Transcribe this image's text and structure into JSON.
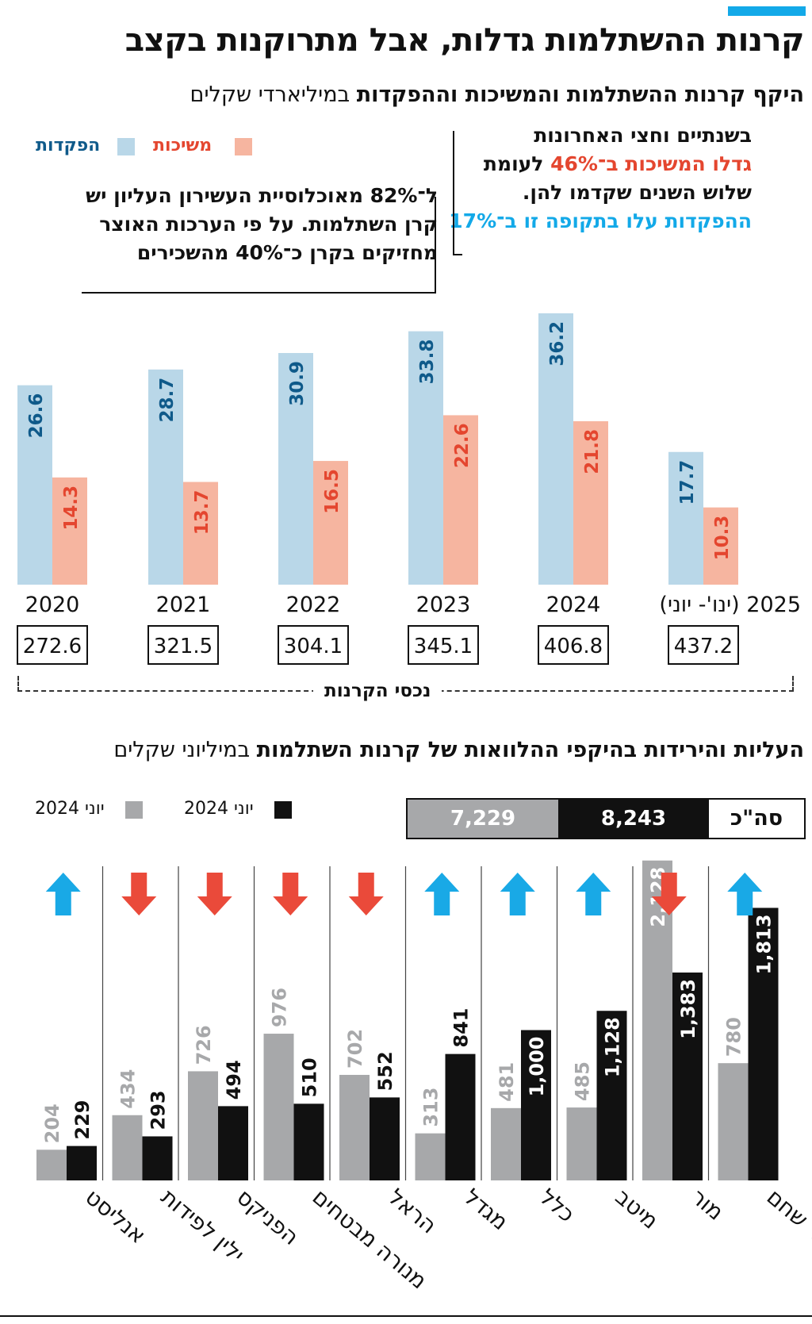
{
  "headline": "קרנות ההשתלמות גדלות, אבל מתרוקנות בקצב",
  "colors": {
    "accent": "#13a9e8",
    "deposits_bar": "#b9d7e8",
    "withdrawals_bar": "#f6b5a0",
    "deposits_label": "#0f5a8a",
    "withdrawals_label": "#e4462f",
    "june2024_bar": "#111111",
    "june2025_bar": "#a7a8aa",
    "arrow_up": "#19a9e6",
    "arrow_down": "#ea4a3a"
  },
  "section1": {
    "subtitle_bold": "היקף קרנות ההשתלמות והמשיכות וההפקדות",
    "subtitle_regular": " במיליארדי שקלים",
    "legend": {
      "withdrawals": "משיכות",
      "deposits": "הפקדות"
    },
    "callout_right": {
      "line1": "בשנתיים וחצי האחרונות",
      "line2_red": "גדלו המשיכות ב־46%",
      "line2_black": " לעומת",
      "line3": "שלוש השנים שקדמו להן.",
      "line4_blue": "ההפקדות עלו בתקופה זו ב־17%"
    },
    "callout_left": {
      "line1": "ל־82% מאוכלוסיית העשירון העליון יש",
      "line2": "קרן השתלמות. על פי הערכות האוצר",
      "line3": "מחזיקים בקרן כ־40% מהשכירים"
    },
    "assets_label": "נכסי הקרנות"
  },
  "section2": {
    "subtitle_bold": "העליות והירידות בהיקפי ההלוואות של קרנות השתלמות",
    "subtitle_regular": " במיליוני שקלים",
    "legend": {
      "june2025": "יוני 2024",
      "june2024": "יוני 2024"
    },
    "total_label": "סה\"כ",
    "total_june2024": "8,243",
    "total_june2025": "7,229"
  },
  "chart_data": [
    {
      "type": "bar",
      "categories": [
        "2020",
        "2021",
        "2022",
        "2023",
        "2024",
        "2025 (ינו'- יוני)"
      ],
      "series": [
        {
          "name": "הפקדות",
          "values": [
            26.6,
            28.7,
            30.9,
            33.8,
            36.2,
            17.7
          ]
        },
        {
          "name": "משיכות",
          "values": [
            14.3,
            13.7,
            16.5,
            22.6,
            21.8,
            10.3
          ]
        }
      ],
      "totals_label": "נכסי הקרנות",
      "totals": [
        "272.6",
        "321.5",
        "304.1",
        "345.1",
        "406.8",
        "437.2"
      ],
      "ylim": [
        0,
        40
      ]
    },
    {
      "type": "bar",
      "categories": [
        "אנליסט",
        "ילין לפידות",
        "הפניקס",
        "מנורה מבטחים",
        "הראל",
        "מגדל",
        "כלל",
        "מיטב",
        "מור",
        "אלטשולר שחם"
      ],
      "series": [
        {
          "name": "יוני 2024",
          "values": [
            204,
            434,
            726,
            976,
            702,
            313,
            481,
            485,
            2128,
            780
          ]
        },
        {
          "name": "יוני 2024",
          "values": [
            229,
            293,
            494,
            510,
            552,
            841,
            1000,
            1128,
            1383,
            1813
          ]
        }
      ],
      "value_labels_light": [
        "204",
        "434",
        "726",
        "976",
        "702",
        "313",
        "481",
        "485",
        "2,128",
        "780"
      ],
      "value_labels_dark": [
        "229",
        "293",
        "494",
        "510",
        "552",
        "841",
        "1,000",
        "1,128",
        "1,383",
        "1,813"
      ],
      "trend": [
        "up",
        "down",
        "down",
        "down",
        "down",
        "up",
        "up",
        "up",
        "down",
        "up"
      ]
    }
  ]
}
